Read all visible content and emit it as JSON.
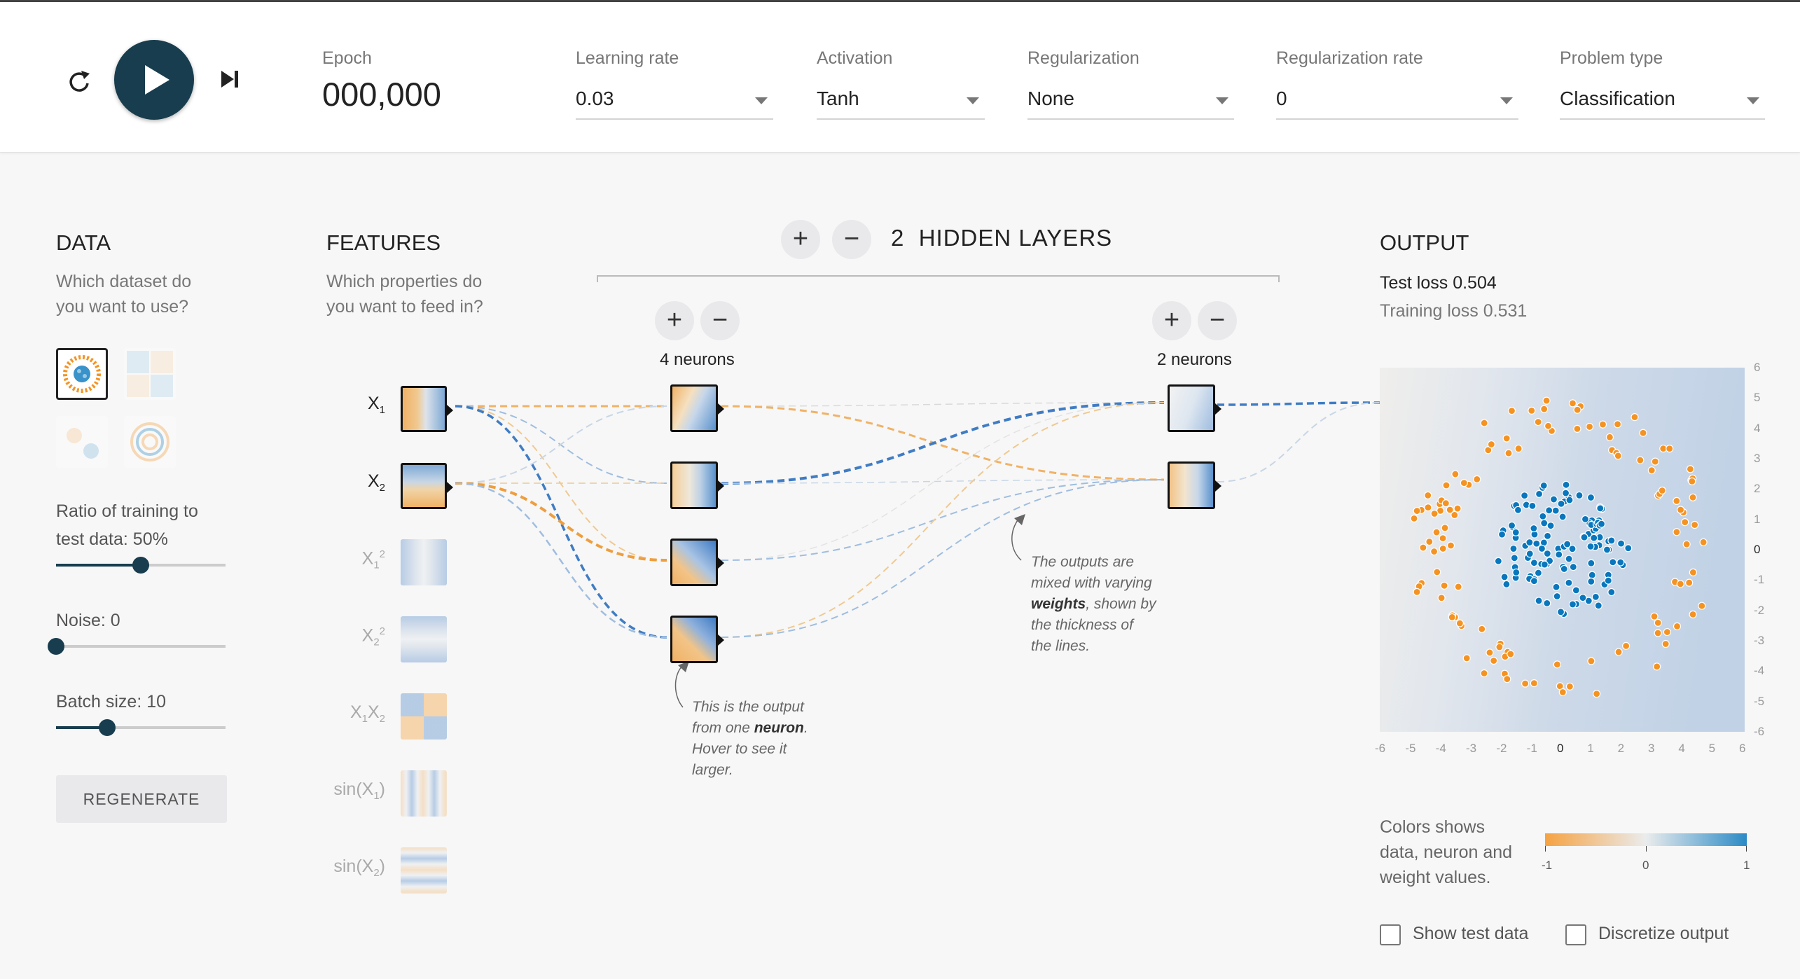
{
  "toolbar": {
    "epoch_label": "Epoch",
    "epoch_value": "000,000",
    "learning_rate": {
      "label": "Learning rate",
      "value": "0.03"
    },
    "activation": {
      "label": "Activation",
      "value": "Tanh"
    },
    "regularization": {
      "label": "Regularization",
      "value": "None"
    },
    "regularization_rate": {
      "label": "Regularization rate",
      "value": "0"
    },
    "problem_type": {
      "label": "Problem type",
      "value": "Classification"
    }
  },
  "data_panel": {
    "title": "DATA",
    "subtitle_1": "Which dataset do",
    "subtitle_2": "you want to use?",
    "ratio_label_1": "Ratio of training to",
    "ratio_label_2": "test data:  50%",
    "ratio_value": 0.5,
    "noise_label": "Noise:  0",
    "noise_value": 0,
    "batch_label": "Batch size:  10",
    "batch_value": 0.3,
    "regenerate": "REGENERATE"
  },
  "features_panel": {
    "title": "FEATURES",
    "subtitle_1": "Which properties do",
    "subtitle_2": "you want to feed in?",
    "items": [
      {
        "base": "X",
        "sub": "1",
        "sup": ""
      },
      {
        "base": "X",
        "sub": "2",
        "sup": ""
      },
      {
        "base": "X",
        "sub": "1",
        "sup": "2"
      },
      {
        "base": "X",
        "sub": "2",
        "sup": "2"
      },
      {
        "base": "X",
        "sub": "1",
        "sup": "",
        "base2": "X",
        "sub2": "2"
      },
      {
        "base": "sin(X",
        "sub": "1",
        "after": ")"
      },
      {
        "base": "sin(X",
        "sub": "2",
        "after": ")"
      }
    ]
  },
  "network": {
    "layer_count": "2",
    "layers_title": "HIDDEN LAYERS",
    "layer1_label": "4 neurons",
    "layer2_label": "2 neurons",
    "plus": "+",
    "minus": "−"
  },
  "notes": {
    "neuron_1": "This is the output",
    "neuron_2a": "from one ",
    "neuron_2b": "neuron",
    "neuron_2c": ".",
    "neuron_3": "Hover to see it",
    "neuron_4": "larger.",
    "weights_1": "The outputs are",
    "weights_2": "mixed with varying",
    "weights_3a": "weights",
    "weights_3b": ", shown by",
    "weights_4": "the thickness of",
    "weights_5": "the lines."
  },
  "output_panel": {
    "title": "OUTPUT",
    "test_loss": "Test loss 0.504",
    "training_loss": "Training loss 0.531",
    "x_ticks": [
      "-6",
      "-5",
      "-4",
      "-3",
      "-2",
      "-1",
      "0",
      "1",
      "2",
      "3",
      "4",
      "5",
      "6"
    ],
    "y_ticks": [
      "6",
      "5",
      "4",
      "3",
      "2",
      "1",
      "0",
      "-1",
      "-2",
      "-3",
      "-4",
      "-5",
      "-6"
    ],
    "legend_1": "Colors shows",
    "legend_2": "data, neuron and",
    "legend_3": "weight values.",
    "legend_min": "-1",
    "legend_mid": "0",
    "legend_max": "1",
    "show_test": "Show test data",
    "discretize": "Discretize output"
  },
  "colors": {
    "orange": "#f59322",
    "blue": "#0877bd",
    "dark": "#183d4e"
  }
}
